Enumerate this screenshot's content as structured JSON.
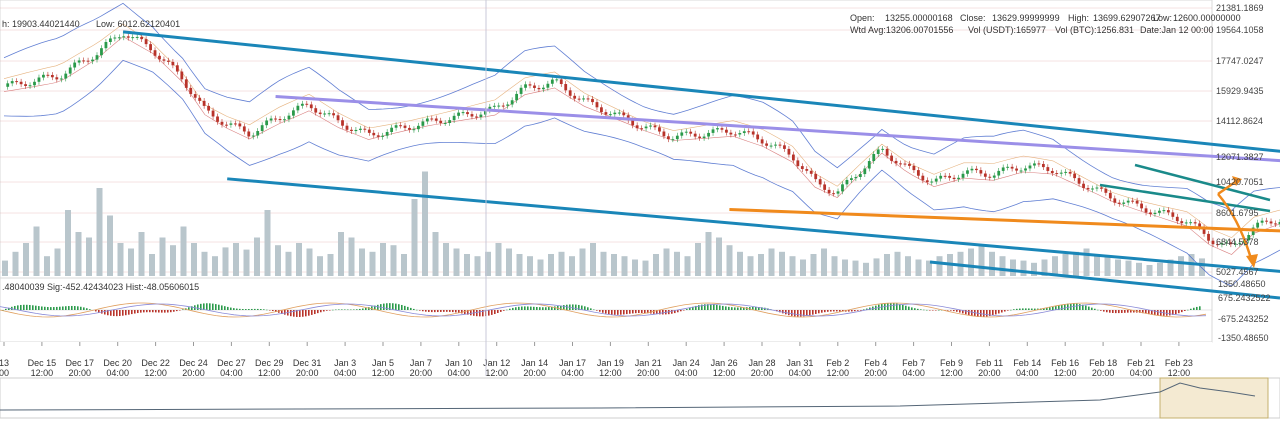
{
  "header": {
    "high_label": "h: 19903.44021440",
    "low_label": "Low: 6012.62120401",
    "open": "Open:",
    "open_val": "13255.00000168",
    "close": "Close:",
    "close_val": "13629.99999999",
    "high": "High:",
    "high_val": "13699.62907267",
    "low2": "Low:",
    "low2_val": "12600.00000000",
    "wtd": "Wtd Avg:13206.00701556",
    "vol_usdt": "Vol (USDT):165977",
    "vol_btc": "Vol (BTC):1256.831",
    "date": "Date:Jan 12 00:00"
  },
  "macd": {
    "label": ".48040039  Sig:-452.42434023  Hist:-48.05606015",
    "ticks": [
      "1350.48650",
      "675.2432522",
      "-675.243252",
      "-1350.48650"
    ]
  },
  "colors": {
    "channel": "#1a86b8",
    "purple": "#9b8fe8",
    "orange": "#f08a1c",
    "up": "#2a9a4a",
    "down": "#b8332a",
    "volume": "#b9c6cc",
    "bands": "#3a5fc8",
    "nav_fill": "#f4ead2"
  },
  "chart_data": {
    "type": "candlestick",
    "y_ticks": [
      "21381.1869",
      "19564.1058",
      "17747.0247",
      "15929.9435",
      "14112.8624",
      "12071.3827",
      "10420.7051",
      "8601.6795",
      "6844.5378",
      "5027.4567"
    ],
    "x_ticks": [
      [
        "13",
        "00"
      ],
      [
        "Dec 15",
        "12:00"
      ],
      [
        "Dec 17",
        "20:00"
      ],
      [
        "Dec 20",
        "04:00"
      ],
      [
        "Dec 22",
        "12:00"
      ],
      [
        "Dec 24",
        "20:00"
      ],
      [
        "Dec 27",
        "04:00"
      ],
      [
        "Dec 29",
        "12:00"
      ],
      [
        "Dec 31",
        "20:00"
      ],
      [
        "Jan 3",
        "04:00"
      ],
      [
        "Jan 5",
        "12:00"
      ],
      [
        "Jan 7",
        "20:00"
      ],
      [
        "Jan 10",
        "04:00"
      ],
      [
        "Jan 12",
        "12:00"
      ],
      [
        "Jan 14",
        "20:00"
      ],
      [
        "Jan 17",
        "04:00"
      ],
      [
        "Jan 19",
        "12:00"
      ],
      [
        "Jan 21",
        "20:00"
      ],
      [
        "Jan 24",
        "04:00"
      ],
      [
        "Jan 26",
        "12:00"
      ],
      [
        "Jan 28",
        "20:00"
      ],
      [
        "Jan 31",
        "04:00"
      ],
      [
        "Feb 2",
        "12:00"
      ],
      [
        "Feb 4",
        "20:00"
      ],
      [
        "Feb 7",
        "04:00"
      ],
      [
        "Feb 9",
        "12:00"
      ],
      [
        "Feb 11",
        "20:00"
      ],
      [
        "Feb 14",
        "04:00"
      ],
      [
        "Feb 16",
        "12:00"
      ],
      [
        "Feb 18",
        "20:00"
      ],
      [
        "Feb 21",
        "04:00"
      ],
      [
        "Feb 23",
        "12:00"
      ]
    ],
    "price_path": [
      [
        0,
        16500
      ],
      [
        1.5,
        17200
      ],
      [
        2.5,
        18600
      ],
      [
        3.2,
        19903
      ],
      [
        4,
        18800
      ],
      [
        4.8,
        17000
      ],
      [
        5.4,
        15000
      ],
      [
        6.0,
        14200
      ],
      [
        6.6,
        13600
      ],
      [
        7.4,
        14600
      ],
      [
        8.2,
        15400
      ],
      [
        9.0,
        14300
      ],
      [
        9.8,
        13500
      ],
      [
        10.6,
        13900
      ],
      [
        11.4,
        14300
      ],
      [
        12.3,
        14700
      ],
      [
        13.2,
        15100
      ],
      [
        14.0,
        16400
      ],
      [
        14.8,
        16800
      ],
      [
        15.6,
        15600
      ],
      [
        16.4,
        14800
      ],
      [
        17.2,
        14000
      ],
      [
        18.0,
        13400
      ],
      [
        18.8,
        13600
      ],
      [
        19.6,
        13800
      ],
      [
        20.4,
        13200
      ],
      [
        21.2,
        12200
      ],
      [
        21.8,
        10600
      ],
      [
        22.4,
        9900
      ],
      [
        23.0,
        11300
      ],
      [
        23.6,
        12600
      ],
      [
        24.3,
        11400
      ],
      [
        25.0,
        10600
      ],
      [
        25.8,
        11200
      ],
      [
        26.6,
        11100
      ],
      [
        27.4,
        11600
      ],
      [
        28.2,
        11400
      ],
      [
        29.0,
        10500
      ],
      [
        29.8,
        9600
      ],
      [
        30.6,
        9000
      ],
      [
        31.2,
        8600
      ],
      [
        31.8,
        8200
      ],
      [
        32.4,
        7100
      ],
      [
        33.0,
        6500
      ],
      [
        33.6,
        7800
      ],
      [
        34.4,
        8400
      ],
      [
        35.2,
        8100
      ],
      [
        36.0,
        8300
      ],
      [
        36.8,
        8700
      ],
      [
        37.6,
        8900
      ],
      [
        38.4,
        9800
      ],
      [
        39.2,
        10200
      ],
      [
        40.0,
        10900
      ],
      [
        40.6,
        10300
      ],
      [
        41.2,
        9900
      ],
      [
        42.0,
        9700
      ],
      [
        42.6,
        9600
      ]
    ],
    "volume": [
      14,
      22,
      30,
      45,
      18,
      25,
      60,
      40,
      35,
      80,
      55,
      30,
      25,
      40,
      20,
      35,
      28,
      45,
      30,
      22,
      18,
      26,
      30,
      24,
      35,
      60,
      28,
      22,
      30,
      25,
      18,
      20,
      40,
      35,
      25,
      22,
      30,
      28,
      20,
      70,
      95,
      40,
      30,
      25,
      20,
      18,
      22,
      30,
      25,
      20,
      18,
      15,
      20,
      22,
      18,
      25,
      30,
      22,
      20,
      18,
      15,
      14,
      20,
      25,
      22,
      18,
      30,
      40,
      35,
      28,
      22,
      18,
      20,
      25,
      22,
      18,
      15,
      20,
      25,
      18,
      15,
      14,
      12,
      16,
      20,
      22,
      18,
      15,
      14,
      18,
      20,
      22,
      25,
      28,
      22,
      18,
      15,
      14,
      12,
      15,
      18,
      20,
      22,
      25,
      20,
      18,
      15,
      14,
      12,
      10,
      12,
      15,
      18,
      20,
      16
    ],
    "trend_lines": {
      "channel_upper": [
        [
          3.2,
          19903
        ],
        [
          44,
          10200
        ]
      ],
      "channel_lower": [
        [
          6,
          10800
        ],
        [
          44,
          3100
        ]
      ],
      "purple_upper": [
        [
          7.3,
          15900
        ],
        [
          44,
          10500
        ]
      ],
      "purple_flat": [
        [
          35.5,
          8900
        ],
        [
          44,
          8900
        ]
      ],
      "orange_lower": [
        [
          19.5,
          8900
        ],
        [
          44,
          6700
        ]
      ]
    }
  },
  "navigator": {
    "line": [
      [
        0,
        0.35
      ],
      [
        0.2,
        0.38
      ],
      [
        0.4,
        0.42
      ],
      [
        0.6,
        0.55
      ],
      [
        0.75,
        0.7
      ],
      [
        0.85,
        0.9
      ],
      [
        0.9,
        1.0
      ],
      [
        0.95,
        0.8
      ],
      [
        1.0,
        0.7
      ]
    ]
  }
}
